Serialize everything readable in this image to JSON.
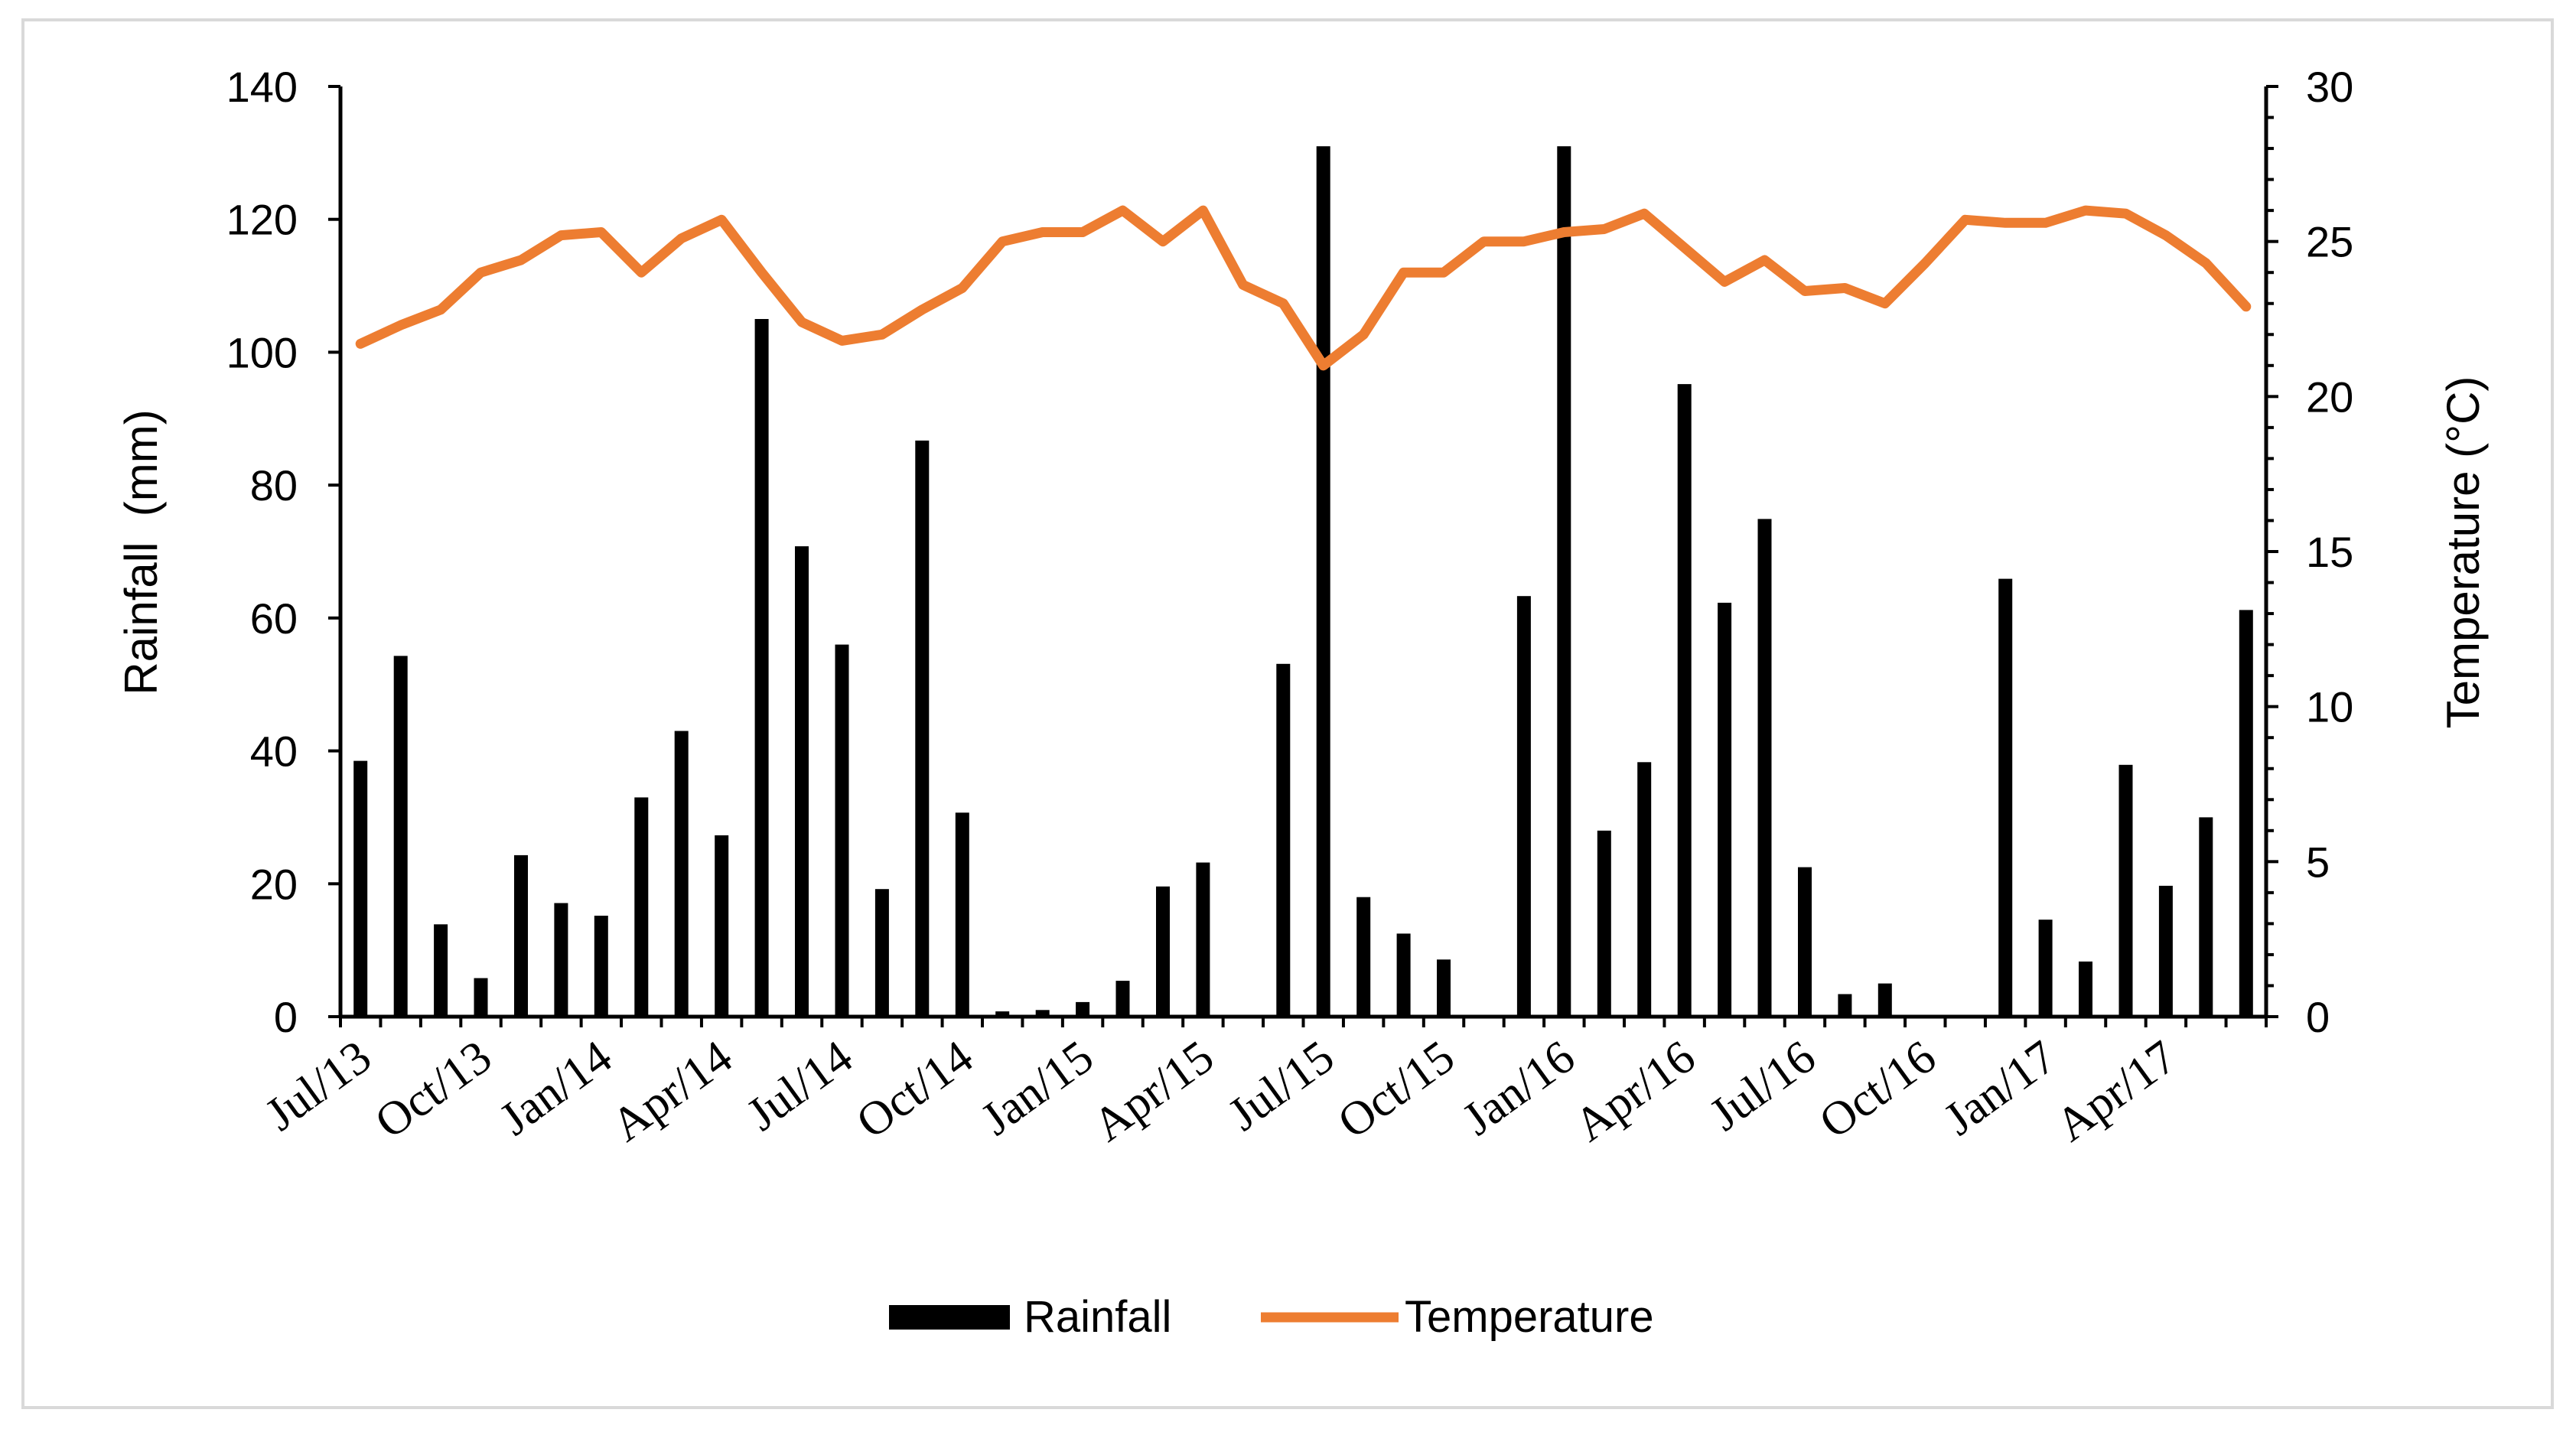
{
  "chart_data": {
    "type": "bar",
    "title": "",
    "xlabel": "",
    "ylabel": "Rainfall  (mm)",
    "y2label": "Temperature (°C)",
    "ylim": [
      0,
      140
    ],
    "y2lim": [
      0,
      30
    ],
    "yticks": [
      0,
      20,
      40,
      60,
      80,
      100,
      120,
      140
    ],
    "y2ticks": [
      0,
      5,
      10,
      15,
      20,
      25,
      30
    ],
    "grid": false,
    "legend_position": "bottom",
    "colors": {
      "bar": "#000000",
      "line": "#ED7D31",
      "axis": "#000000",
      "frame": "#D9D9D9"
    },
    "categories": [
      "Jul/13",
      "Aug/13",
      "Sep/13",
      "Oct/13",
      "Nov/13",
      "Dec/13",
      "Jan/14",
      "Feb/14",
      "Mar/14",
      "Apr/14",
      "May/14",
      "Jun/14",
      "Jul/14",
      "Aug/14",
      "Sep/14",
      "Oct/14",
      "Nov/14",
      "Dec/14",
      "Jan/15",
      "Feb/15",
      "Mar/15",
      "Apr/15",
      "May/15",
      "Jun/15",
      "Jul/15",
      "Aug/15",
      "Sep/15",
      "Oct/15",
      "Nov/15",
      "Dec/15",
      "Jan/16",
      "Feb/16",
      "Mar/16",
      "Apr/16",
      "May/16",
      "Jun/16",
      "Jul/16",
      "Aug/16",
      "Sep/16",
      "Oct/16",
      "Nov/16",
      "Dec/16",
      "Jan/17",
      "Feb/17",
      "Mar/17",
      "Apr/17",
      "May/17",
      "Jun/17"
    ],
    "tick_labels": [
      "Jul/13",
      "Oct/13",
      "Jan/14",
      "Apr/14",
      "Jul/14",
      "Oct/14",
      "Jan/15",
      "Apr/15",
      "Jul/15",
      "Oct/15",
      "Jan/16",
      "Apr/16",
      "Jul/16",
      "Oct/16",
      "Jan/17",
      "Apr/17"
    ],
    "series": [
      {
        "name": "Rainfall",
        "type": "bar",
        "axis": "left",
        "values": [
          38.5,
          54.3,
          13.9,
          5.8,
          24.3,
          17.1,
          15.2,
          33,
          43,
          27.3,
          105,
          70.8,
          56,
          19.2,
          86.7,
          30.7,
          0.8,
          1,
          2.2,
          5.4,
          19.6,
          23.2,
          0,
          53.1,
          131,
          18,
          12.5,
          8.6,
          0,
          63.3,
          131,
          28,
          38.3,
          95.2,
          62.3,
          74.9,
          22.5,
          3.4,
          5,
          0,
          0,
          65.9,
          14.6,
          8.3,
          37.9,
          19.7,
          30,
          61.2
        ]
      },
      {
        "name": "Temperature",
        "type": "line",
        "axis": "right",
        "values": [
          21.7,
          22.3,
          22.8,
          24.0,
          24.4,
          25.2,
          25.3,
          24.0,
          25.1,
          25.7,
          24.0,
          22.4,
          21.8,
          22.0,
          22.8,
          23.5,
          25.0,
          25.3,
          25.3,
          26.0,
          25.0,
          26.0,
          23.6,
          23.0,
          21.0,
          22.0,
          24.0,
          24.0,
          25.0,
          25.0,
          25.3,
          25.4,
          25.9,
          24.8,
          23.7,
          24.4,
          23.4,
          23.5,
          23.0,
          24.3,
          25.7,
          25.6,
          25.6,
          26.0,
          25.9,
          25.2,
          24.3,
          22.9
        ]
      }
    ]
  }
}
